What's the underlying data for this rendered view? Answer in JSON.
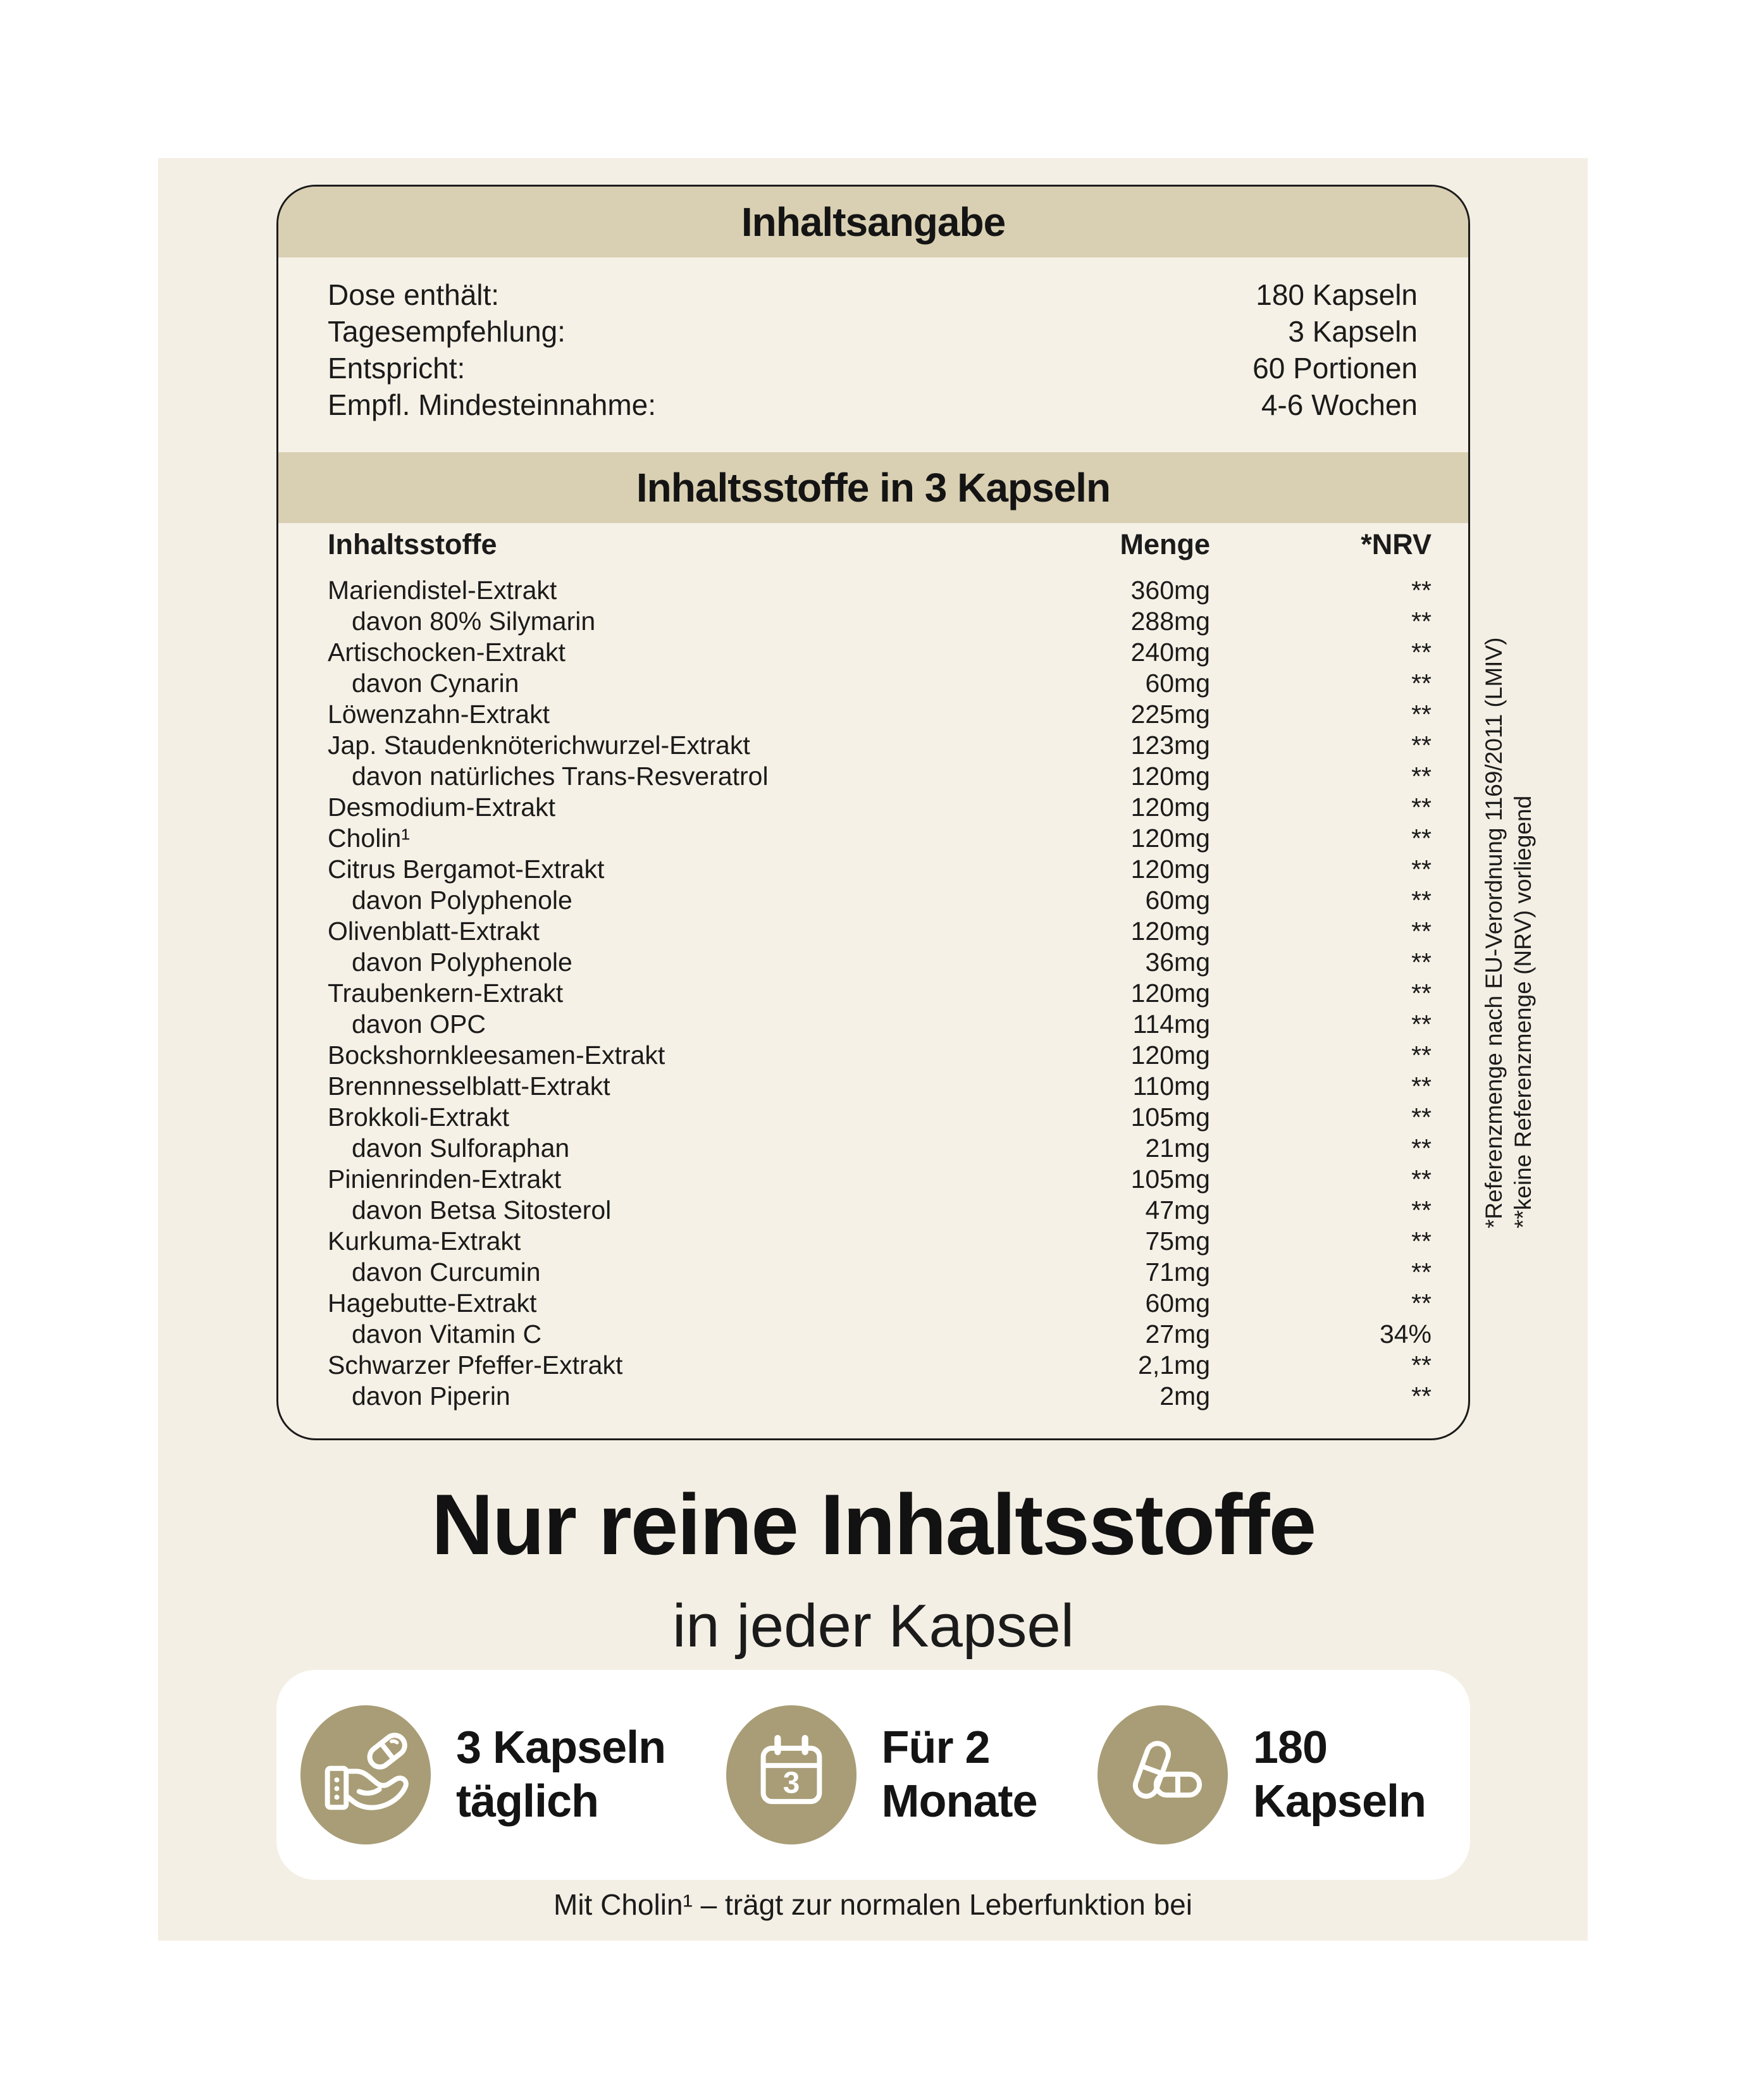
{
  "colors": {
    "page_bg": "#ffffff",
    "panel_bg": "#f4efe4",
    "card_bg": "#f6f1e6",
    "band_bg": "#d9cfb2",
    "circle_accent": "#a89d76",
    "text": "#1b1b1b"
  },
  "dosage_card": {
    "title": "Inhaltsangabe",
    "info_rows": [
      {
        "label": "Dose enthält:",
        "value": "180 Kapseln"
      },
      {
        "label": "Tagesempfehlung:",
        "value": "3 Kapseln"
      },
      {
        "label": "Entspricht:",
        "value": "60 Portionen"
      },
      {
        "label": "Empfl. Mindesteinnahme:",
        "value": "4-6 Wochen"
      }
    ],
    "table_title": "Inhaltsstoffe in 3 Kapseln",
    "columns": {
      "name": "Inhaltsstoffe",
      "amount": "Menge",
      "nrv": "*NRV"
    },
    "rows": [
      {
        "name": "Mariendistel-Extrakt",
        "amount": "360mg",
        "nrv": "**",
        "indent": false
      },
      {
        "name": "davon 80% Silymarin",
        "amount": "288mg",
        "nrv": "**",
        "indent": true
      },
      {
        "name": "Artischocken-Extrakt",
        "amount": "240mg",
        "nrv": "**",
        "indent": false
      },
      {
        "name": "davon Cynarin",
        "amount": "60mg",
        "nrv": "**",
        "indent": true
      },
      {
        "name": "Löwenzahn-Extrakt",
        "amount": "225mg",
        "nrv": "**",
        "indent": false
      },
      {
        "name": "Jap. Staudenknöterichwurzel-Extrakt",
        "amount": "123mg",
        "nrv": "**",
        "indent": false
      },
      {
        "name": "davon natürliches Trans-Resveratrol",
        "amount": "120mg",
        "nrv": "**",
        "indent": true
      },
      {
        "name": "Desmodium-Extrakt",
        "amount": "120mg",
        "nrv": "**",
        "indent": false
      },
      {
        "name": "Cholin¹",
        "amount": "120mg",
        "nrv": "**",
        "indent": false
      },
      {
        "name": "Citrus Bergamot-Extrakt",
        "amount": "120mg",
        "nrv": "**",
        "indent": false
      },
      {
        "name": "davon Polyphenole",
        "amount": "60mg",
        "nrv": "**",
        "indent": true
      },
      {
        "name": "Olivenblatt-Extrakt",
        "amount": "120mg",
        "nrv": "**",
        "indent": false
      },
      {
        "name": "davon Polyphenole",
        "amount": "36mg",
        "nrv": "**",
        "indent": true
      },
      {
        "name": "Traubenkern-Extrakt",
        "amount": "120mg",
        "nrv": "**",
        "indent": false
      },
      {
        "name": "davon OPC",
        "amount": "114mg",
        "nrv": "**",
        "indent": true
      },
      {
        "name": "Bockshornkleesamen-Extrakt",
        "amount": "120mg",
        "nrv": "**",
        "indent": false
      },
      {
        "name": "Brennnesselblatt-Extrakt",
        "amount": "110mg",
        "nrv": "**",
        "indent": false
      },
      {
        "name": "Brokkoli-Extrakt",
        "amount": "105mg",
        "nrv": "**",
        "indent": false
      },
      {
        "name": "davon Sulforaphan",
        "amount": "21mg",
        "nrv": "**",
        "indent": true
      },
      {
        "name": "Pinienrinden-Extrakt",
        "amount": "105mg",
        "nrv": "**",
        "indent": false
      },
      {
        "name": "davon Betsa Sitosterol",
        "amount": "47mg",
        "nrv": "**",
        "indent": true
      },
      {
        "name": "Kurkuma-Extrakt",
        "amount": "75mg",
        "nrv": "**",
        "indent": false
      },
      {
        "name": "davon Curcumin",
        "amount": "71mg",
        "nrv": "**",
        "indent": true
      },
      {
        "name": "Hagebutte-Extrakt",
        "amount": "60mg",
        "nrv": "**",
        "indent": false
      },
      {
        "name": "davon Vitamin C",
        "amount": "27mg",
        "nrv": "34%",
        "indent": true
      },
      {
        "name": "Schwarzer Pfeffer-Extrakt",
        "amount": "2,1mg",
        "nrv": "**",
        "indent": false
      },
      {
        "name": "davon Piperin",
        "amount": "2mg",
        "nrv": "**",
        "indent": true
      }
    ]
  },
  "side_footnotes": {
    "line1": "*Referenzmenge nach EU-Verordnung 1169/2011 (LMIV)",
    "line2": "**keine Referenzmenge (NRV) vorliegend"
  },
  "headline": {
    "title": "Nur reine Inhaltsstoffe",
    "subtitle": "in jeder Kapsel"
  },
  "benefits": [
    {
      "icon": "hand-receiving-capsule-icon",
      "line1": "3 Kapseln",
      "line2": "täglich"
    },
    {
      "icon": "calendar-icon",
      "badge": "3",
      "line1": "Für 2",
      "line2": "Monate"
    },
    {
      "icon": "two-capsules-icon",
      "line1": "180",
      "line2": "Kapseln"
    }
  ],
  "footer_note": "Mit Cholin¹ – trägt zur normalen Leberfunktion bei"
}
